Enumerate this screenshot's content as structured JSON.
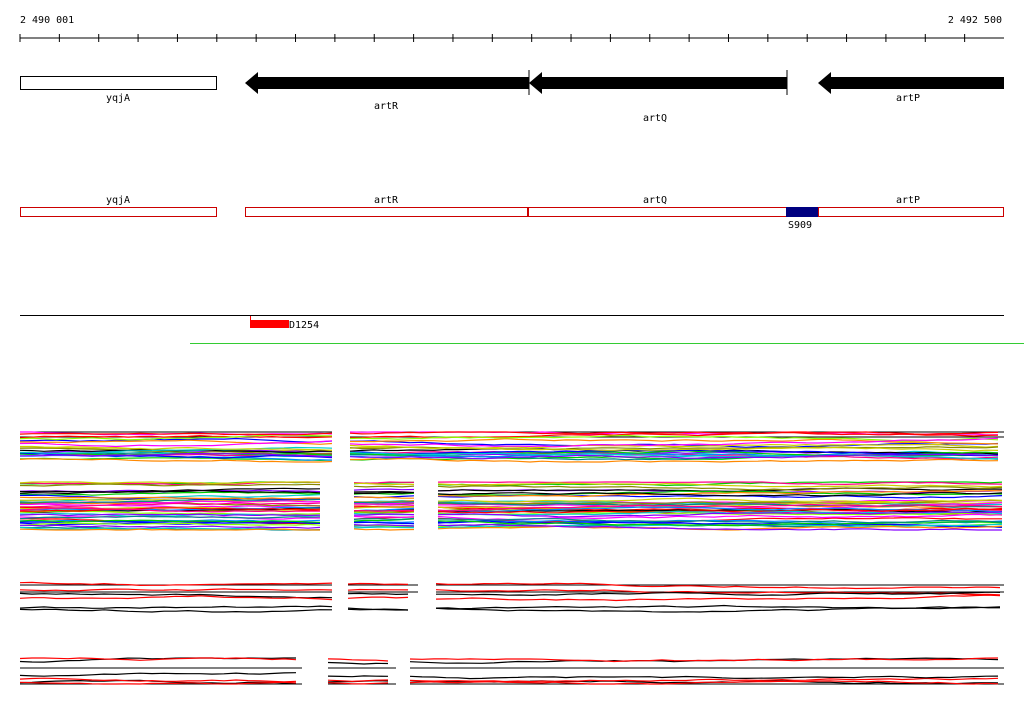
{
  "ruler": {
    "start": "2 490 001",
    "end": "2 492 500"
  },
  "genes": [
    {
      "label": "yqjA"
    },
    {
      "label": "artR"
    },
    {
      "label": "artQ"
    },
    {
      "label": "artP"
    }
  ],
  "features": [
    {
      "label": "yqjA"
    },
    {
      "label": "artR"
    },
    {
      "label": "artQ"
    },
    {
      "label": "artP"
    }
  ],
  "markers": [
    {
      "label": "S909"
    },
    {
      "label": "D1254"
    }
  ]
}
